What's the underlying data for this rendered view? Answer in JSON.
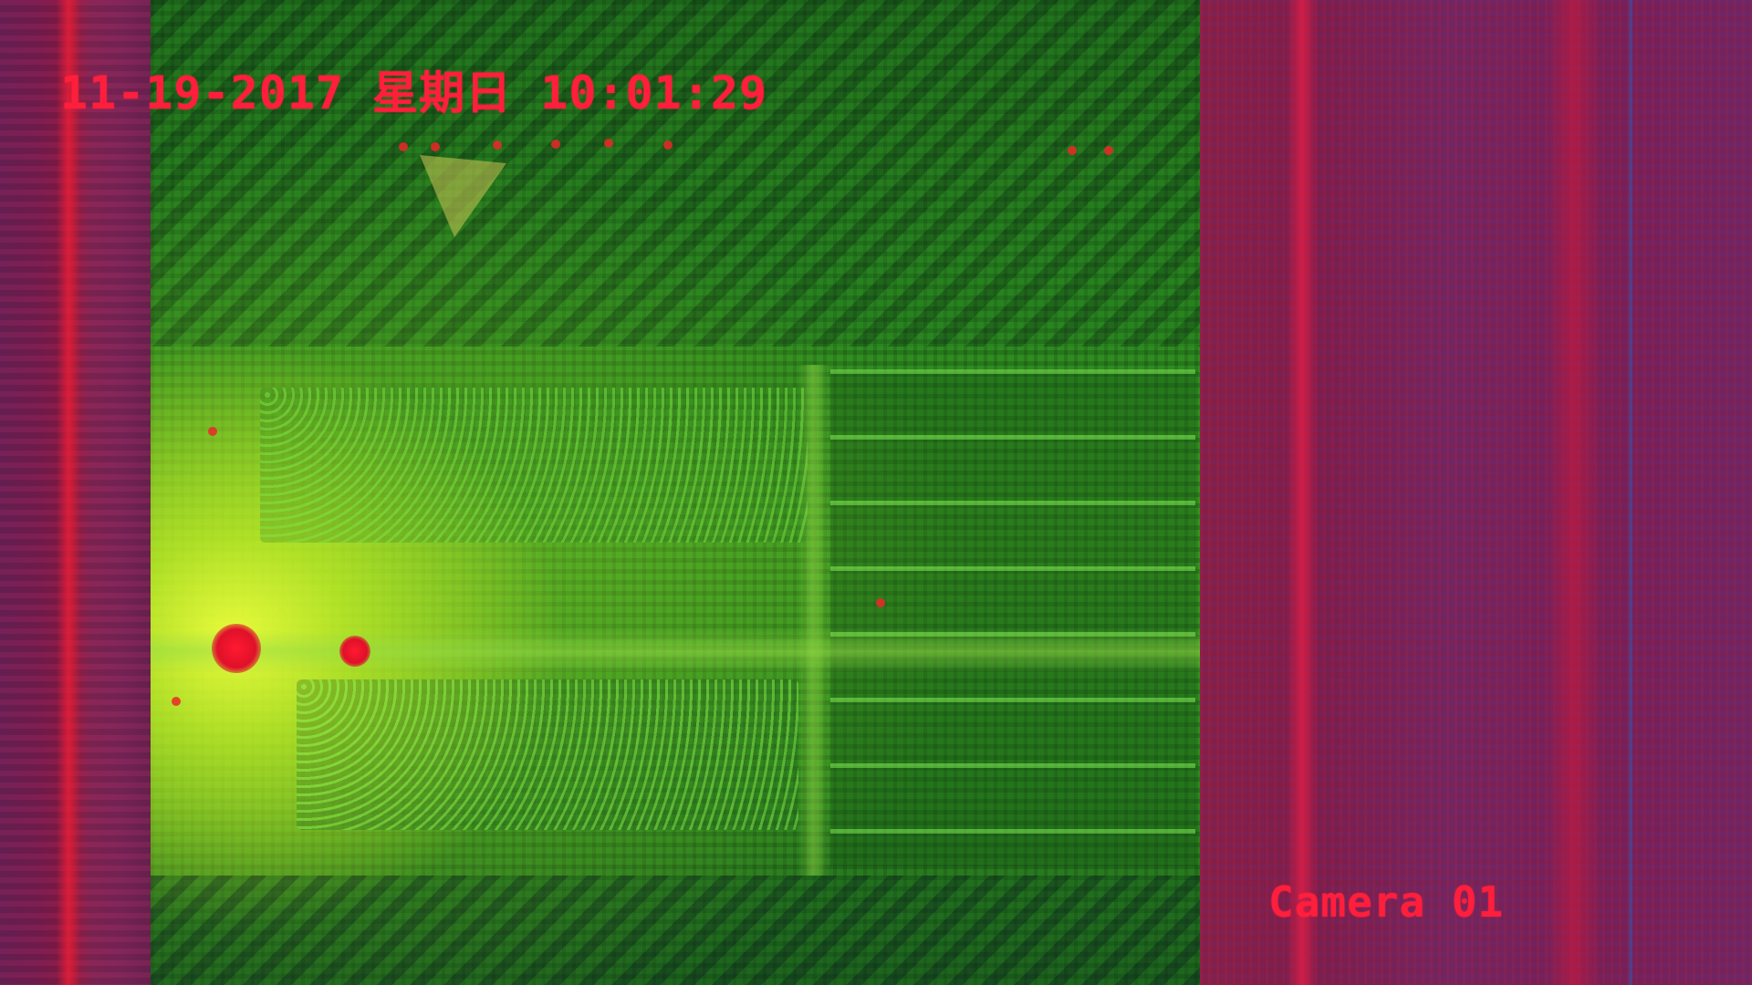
{
  "osd": {
    "timestamp": "11-19-2017 星期日 10:01:29",
    "camera_label": "Camera 01",
    "text_color": "#ff1e3c"
  },
  "scene": {
    "palette": {
      "field_green": "#2a8a22",
      "hot_yellow": "#f0ff3c",
      "hotspot_red": "#ff1a30",
      "border_magenta": "#6e2a66"
    }
  }
}
